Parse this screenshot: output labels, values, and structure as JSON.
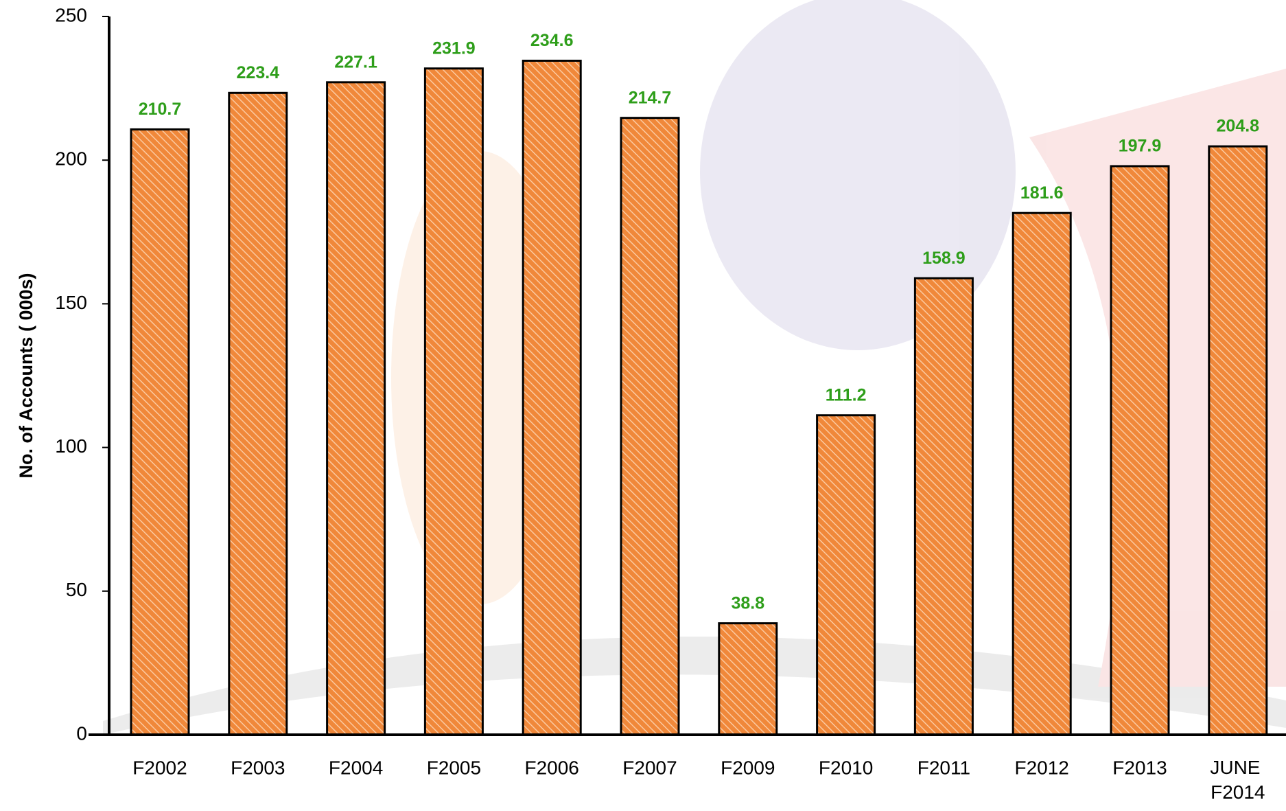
{
  "chart_data": {
    "type": "bar",
    "ylabel": "No. of Accounts ( 000s)",
    "categories": [
      "F2002",
      "F2003",
      "F2004",
      "F2005",
      "F2006",
      "F2007",
      "F2009",
      "F2010",
      "F2011",
      "F2012",
      "F2013",
      "JUNE F2014"
    ],
    "values": [
      210.7,
      223.4,
      227.1,
      231.9,
      234.6,
      214.7,
      38.8,
      111.2,
      158.9,
      181.6,
      197.9,
      204.8
    ],
    "color": "#f0883a",
    "label_color": "#2e9e1a",
    "ylim": [
      0,
      250
    ],
    "yticks": [
      0,
      50,
      100,
      150,
      200,
      250
    ],
    "grid": false
  }
}
